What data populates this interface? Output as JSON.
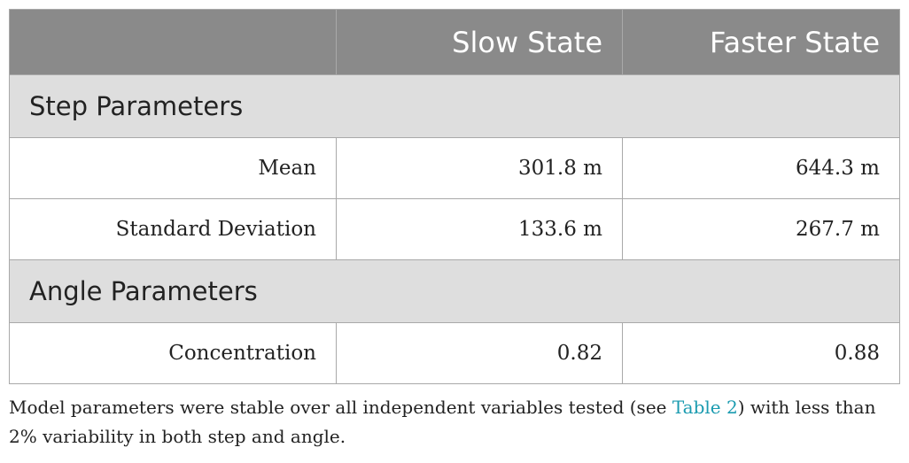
{
  "table": {
    "header": [
      "",
      "Slow State",
      "Faster State"
    ],
    "sections": [
      {
        "title": "Step Parameters",
        "rows": [
          {
            "label": "Mean",
            "slow": "301.8 m",
            "faster": "644.3 m"
          },
          {
            "label": "Standard Deviation",
            "slow": "133.6 m",
            "faster": "267.7 m"
          }
        ]
      },
      {
        "title": "Angle Parameters",
        "rows": [
          {
            "label": "Concentration",
            "slow": "0.82",
            "faster": "0.88"
          }
        ]
      }
    ]
  },
  "footnote": {
    "before_link": "Model parameters were stable over all independent variables tested (see ",
    "link_text": "Table 2",
    "after_link": ") with less than 2% variability in both step and angle."
  },
  "colors": {
    "header_bg": "#8a8a8a",
    "section_bg": "#dedede",
    "border": "#a9a9a9",
    "link": "#1a9bb0"
  }
}
